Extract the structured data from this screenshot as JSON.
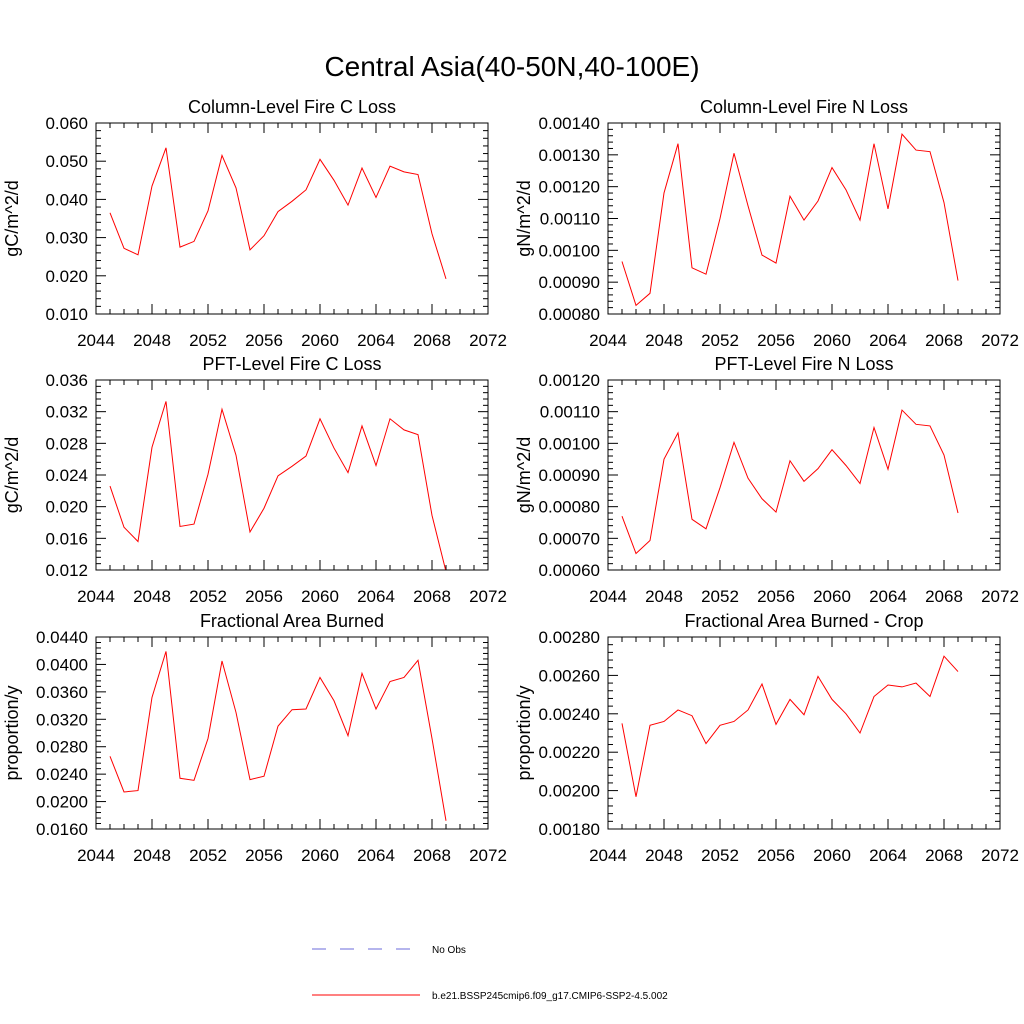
{
  "title": "Central Asia(40-50N,40-100E)",
  "legend": {
    "obs_label": "No Obs",
    "obs_color": "#6b6bdb",
    "model_label": "b.e21.BSSP245cmip6.f09_g17.CMIP6-SSP2-4.5.002",
    "model_color": "#ff0000"
  },
  "chart_data": [
    {
      "type": "line",
      "title": "Column-Level Fire C Loss",
      "ylabel": "gC/m^2/d",
      "xlim": [
        2044,
        2072
      ],
      "ylim": [
        0.01,
        0.06
      ],
      "xticks": [
        "2044",
        "2048",
        "2052",
        "2056",
        "2060",
        "2064",
        "2068",
        "2072"
      ],
      "yticks": [
        "0.010",
        "0.020",
        "0.030",
        "0.040",
        "0.050",
        "0.060"
      ],
      "series": [
        {
          "x": [
            2045,
            2046,
            2047,
            2048,
            2049,
            2050,
            2051,
            2052,
            2053,
            2054,
            2055,
            2056,
            2057,
            2058,
            2059,
            2060,
            2061,
            2062,
            2063,
            2064,
            2065,
            2066,
            2067,
            2068,
            2069
          ],
          "y": [
            0.0365,
            0.0272,
            0.0255,
            0.0435,
            0.0535,
            0.0275,
            0.029,
            0.037,
            0.0515,
            0.043,
            0.0268,
            0.0305,
            0.0368,
            0.0395,
            0.0425,
            0.0505,
            0.045,
            0.0385,
            0.0482,
            0.0405,
            0.0487,
            0.0472,
            0.0465,
            0.031,
            0.0192
          ]
        }
      ]
    },
    {
      "type": "line",
      "title": "Column-Level Fire N Loss",
      "ylabel": "gN/m^2/d",
      "xlim": [
        2044,
        2072
      ],
      "ylim": [
        0.0008,
        0.0014
      ],
      "xticks": [
        "2044",
        "2048",
        "2052",
        "2056",
        "2060",
        "2064",
        "2068",
        "2072"
      ],
      "yticks": [
        "0.00080",
        "0.00090",
        "0.00100",
        "0.00110",
        "0.00120",
        "0.00130",
        "0.00140"
      ],
      "series": [
        {
          "x": [
            2045,
            2046,
            2047,
            2048,
            2049,
            2050,
            2051,
            2052,
            2053,
            2054,
            2055,
            2056,
            2057,
            2058,
            2059,
            2060,
            2061,
            2062,
            2063,
            2064,
            2065,
            2066,
            2067,
            2068,
            2069
          ],
          "y": [
            0.000965,
            0.000827,
            0.000865,
            0.00118,
            0.001335,
            0.000945,
            0.000925,
            0.0011,
            0.001305,
            0.00114,
            0.000985,
            0.00096,
            0.00117,
            0.001095,
            0.001155,
            0.00126,
            0.00119,
            0.001095,
            0.001335,
            0.00113,
            0.001365,
            0.001315,
            0.00131,
            0.00115,
            0.000905
          ]
        }
      ]
    },
    {
      "type": "line",
      "title": "PFT-Level Fire C Loss",
      "ylabel": "gC/m^2/d",
      "xlim": [
        2044,
        2072
      ],
      "ylim": [
        0.012,
        0.036
      ],
      "xticks": [
        "2044",
        "2048",
        "2052",
        "2056",
        "2060",
        "2064",
        "2068",
        "2072"
      ],
      "yticks": [
        "0.012",
        "0.016",
        "0.020",
        "0.024",
        "0.028",
        "0.032",
        "0.036"
      ],
      "series": [
        {
          "x": [
            2045,
            2046,
            2047,
            2048,
            2049,
            2050,
            2051,
            2052,
            2053,
            2054,
            2055,
            2056,
            2057,
            2058,
            2059,
            2060,
            2061,
            2062,
            2063,
            2064,
            2065,
            2066,
            2067,
            2068,
            2069
          ],
          "y": [
            0.0226,
            0.0174,
            0.0156,
            0.0275,
            0.0333,
            0.0175,
            0.0178,
            0.0241,
            0.0323,
            0.0265,
            0.0168,
            0.0198,
            0.0239,
            0.0251,
            0.0264,
            0.0311,
            0.0274,
            0.0243,
            0.0302,
            0.0252,
            0.0311,
            0.0297,
            0.0291,
            0.0189,
            0.0118
          ]
        }
      ]
    },
    {
      "type": "line",
      "title": "PFT-Level Fire N Loss",
      "ylabel": "gN/m^2/d",
      "xlim": [
        2044,
        2072
      ],
      "ylim": [
        0.0006,
        0.0012
      ],
      "xticks": [
        "2044",
        "2048",
        "2052",
        "2056",
        "2060",
        "2064",
        "2068",
        "2072"
      ],
      "yticks": [
        "0.00060",
        "0.00070",
        "0.00080",
        "0.00090",
        "0.00100",
        "0.00110",
        "0.00120"
      ],
      "series": [
        {
          "x": [
            2045,
            2046,
            2047,
            2048,
            2049,
            2050,
            2051,
            2052,
            2053,
            2054,
            2055,
            2056,
            2057,
            2058,
            2059,
            2060,
            2061,
            2062,
            2063,
            2064,
            2065,
            2066,
            2067,
            2068,
            2069
          ],
          "y": [
            0.00077,
            0.000652,
            0.000693,
            0.00095,
            0.001033,
            0.00076,
            0.00073,
            0.00086,
            0.001003,
            0.00089,
            0.000825,
            0.000783,
            0.000945,
            0.00088,
            0.00092,
            0.00098,
            0.00093,
            0.000873,
            0.00105,
            0.000918,
            0.001105,
            0.00106,
            0.001055,
            0.000963,
            0.00078
          ]
        }
      ]
    },
    {
      "type": "line",
      "title": "Fractional Area Burned",
      "ylabel": "proportion/y",
      "xlim": [
        2044,
        2072
      ],
      "ylim": [
        0.016,
        0.044
      ],
      "xticks": [
        "2044",
        "2048",
        "2052",
        "2056",
        "2060",
        "2064",
        "2068",
        "2072"
      ],
      "yticks": [
        "0.0160",
        "0.0200",
        "0.0240",
        "0.0280",
        "0.0320",
        "0.0360",
        "0.0400",
        "0.0440"
      ],
      "series": [
        {
          "x": [
            2045,
            2046,
            2047,
            2048,
            2049,
            2050,
            2051,
            2052,
            2053,
            2054,
            2055,
            2056,
            2057,
            2058,
            2059,
            2060,
            2061,
            2062,
            2063,
            2064,
            2065,
            2066,
            2067,
            2068,
            2069
          ],
          "y": [
            0.0266,
            0.0214,
            0.0216,
            0.0352,
            0.0419,
            0.0234,
            0.0231,
            0.0292,
            0.0405,
            0.033,
            0.0232,
            0.0237,
            0.031,
            0.0334,
            0.0335,
            0.0381,
            0.0347,
            0.0296,
            0.0387,
            0.0335,
            0.0375,
            0.0381,
            0.0406,
            0.0292,
            0.0172
          ]
        }
      ]
    },
    {
      "type": "line",
      "title": "Fractional Area Burned - Crop",
      "ylabel": "proportion/y",
      "xlim": [
        2044,
        2072
      ],
      "ylim": [
        0.0018,
        0.0028
      ],
      "xticks": [
        "2044",
        "2048",
        "2052",
        "2056",
        "2060",
        "2064",
        "2068",
        "2072"
      ],
      "yticks": [
        "0.00180",
        "0.00200",
        "0.00220",
        "0.00240",
        "0.00260",
        "0.00280"
      ],
      "series": [
        {
          "x": [
            2045,
            2046,
            2047,
            2048,
            2049,
            2050,
            2051,
            2052,
            2053,
            2054,
            2055,
            2056,
            2057,
            2058,
            2059,
            2060,
            2061,
            2062,
            2063,
            2064,
            2065,
            2066,
            2067,
            2068,
            2069
          ],
          "y": [
            0.00235,
            0.001968,
            0.00234,
            0.00236,
            0.00242,
            0.00239,
            0.002245,
            0.00234,
            0.00236,
            0.00242,
            0.002555,
            0.002345,
            0.002475,
            0.002395,
            0.002595,
            0.002475,
            0.0024,
            0.0023,
            0.00249,
            0.00255,
            0.00254,
            0.00256,
            0.00249,
            0.0027,
            0.00262
          ]
        }
      ]
    }
  ]
}
